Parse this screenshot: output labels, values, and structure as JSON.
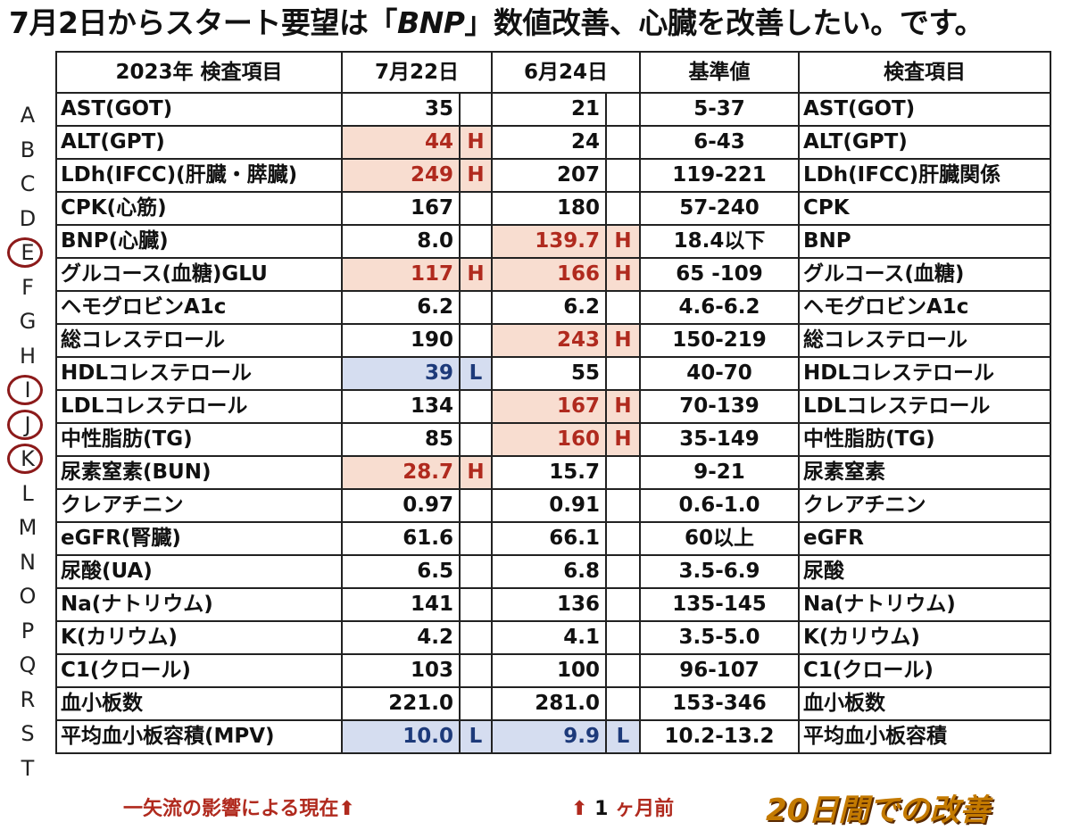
{
  "title_parts": [
    "7月2日からスタート要望は「",
    "BNP",
    "」数値改善、心臓を改善したい。です。"
  ],
  "headers": [
    "2023年 検査項目",
    "7月22日",
    "6月24日",
    "基準値",
    "検査項目"
  ],
  "rows": [
    {
      "letter": "A",
      "circled": false,
      "item": "AST(GOT)",
      "v1": "35",
      "f1": "",
      "s1": "",
      "v2": "21",
      "f2": "",
      "s2": "",
      "ref": "5-37",
      "item2": "AST(GOT)"
    },
    {
      "letter": "B",
      "circled": false,
      "item": "ALT(GPT)",
      "v1": "44",
      "f1": "H",
      "s1": "hi",
      "v2": "24",
      "f2": "",
      "s2": "",
      "ref": "6-43",
      "item2": "ALT(GPT)"
    },
    {
      "letter": "C",
      "circled": false,
      "item": "LDh(IFCC)(肝臓・膵臓)",
      "v1": "249",
      "f1": "H",
      "s1": "hi",
      "v2": "207",
      "f2": "",
      "s2": "",
      "ref": "119-221",
      "item2": "LDh(IFCC)肝臓関係"
    },
    {
      "letter": "D",
      "circled": false,
      "item": "CPK(心筋)",
      "v1": "167",
      "f1": "",
      "s1": "",
      "v2": "180",
      "f2": "",
      "s2": "",
      "ref": "57-240",
      "item2": "CPK"
    },
    {
      "letter": "E",
      "circled": true,
      "item": "BNP(心臓)",
      "v1": "8.0",
      "f1": "",
      "s1": "",
      "v2": "139.7",
      "f2": "H",
      "s2": "hi",
      "ref": "18.4以下",
      "item2": "BNP"
    },
    {
      "letter": "F",
      "circled": false,
      "item": "グルコース(血糖)GLU",
      "v1": "117",
      "f1": "H",
      "s1": "hi",
      "v2": "166",
      "f2": "H",
      "s2": "hi",
      "ref": "65 -109",
      "item2": "グルコース(血糖)"
    },
    {
      "letter": "G",
      "circled": false,
      "item": "ヘモグロビンA1c",
      "v1": "6.2",
      "f1": "",
      "s1": "",
      "v2": "6.2",
      "f2": "",
      "s2": "",
      "ref": "4.6-6.2",
      "item2": "ヘモグロビンA1c"
    },
    {
      "letter": "H",
      "circled": false,
      "item": "総コレステロール",
      "v1": "190",
      "f1": "",
      "s1": "",
      "v2": "243",
      "f2": "H",
      "s2": "hi",
      "ref": "150-219",
      "item2": "総コレステロール"
    },
    {
      "letter": "I",
      "circled": true,
      "item": "HDLコレステロール",
      "v1": "39",
      "f1": "L",
      "s1": "lo",
      "v2": "55",
      "f2": "",
      "s2": "",
      "ref": "40-70",
      "item2": "HDLコレステロール"
    },
    {
      "letter": "J",
      "circled": true,
      "item": "LDLコレステロール",
      "v1": "134",
      "f1": "",
      "s1": "",
      "v2": "167",
      "f2": "H",
      "s2": "hi",
      "ref": "70-139",
      "item2": "LDLコレステロール"
    },
    {
      "letter": "K",
      "circled": true,
      "item": "中性脂肪(TG)",
      "v1": "85",
      "f1": "",
      "s1": "",
      "v2": "160",
      "f2": "H",
      "s2": "hi",
      "ref": "35-149",
      "item2": "中性脂肪(TG)"
    },
    {
      "letter": "L",
      "circled": false,
      "item": "尿素窒素(BUN)",
      "v1": "28.7",
      "f1": "H",
      "s1": "hi",
      "v2": "15.7",
      "f2": "",
      "s2": "",
      "ref": "9-21",
      "item2": "尿素窒素"
    },
    {
      "letter": "M",
      "circled": false,
      "item": "クレアチニン",
      "v1": "0.97",
      "f1": "",
      "s1": "",
      "v2": "0.91",
      "f2": "",
      "s2": "",
      "ref": "0.6-1.0",
      "item2": "クレアチニン"
    },
    {
      "letter": "N",
      "circled": false,
      "item": "eGFR(腎臓)",
      "v1": "61.6",
      "f1": "",
      "s1": "",
      "v2": "66.1",
      "f2": "",
      "s2": "",
      "ref": "60以上",
      "item2": "eGFR"
    },
    {
      "letter": "O",
      "circled": false,
      "item": "尿酸(UA)",
      "v1": "6.5",
      "f1": "",
      "s1": "",
      "v2": "6.8",
      "f2": "",
      "s2": "",
      "ref": "3.5-6.9",
      "item2": "尿酸"
    },
    {
      "letter": "P",
      "circled": false,
      "item": "Na(ナトリウム)",
      "v1": "141",
      "f1": "",
      "s1": "",
      "v2": "136",
      "f2": "",
      "s2": "",
      "ref": "135-145",
      "item2": "Na(ナトリウム)"
    },
    {
      "letter": "Q",
      "circled": false,
      "item": "K(カリウム)",
      "v1": "4.2",
      "f1": "",
      "s1": "",
      "v2": "4.1",
      "f2": "",
      "s2": "",
      "ref": "3.5-5.0",
      "item2": "K(カリウム)"
    },
    {
      "letter": "R",
      "circled": false,
      "item": "C1(クロール)",
      "v1": "103",
      "f1": "",
      "s1": "",
      "v2": "100",
      "f2": "",
      "s2": "",
      "ref": "96-107",
      "item2": "C1(クロール)"
    },
    {
      "letter": "S",
      "circled": false,
      "item": "血小板数",
      "v1": "221.0",
      "f1": "",
      "s1": "",
      "v2": "281.0",
      "f2": "",
      "s2": "",
      "ref": "153-346",
      "item2": "血小板数"
    },
    {
      "letter": "T",
      "circled": false,
      "item": "平均血小板容積(MPV)",
      "v1": "10.0",
      "f1": "L",
      "s1": "lo",
      "v2": "9.9",
      "f2": "L",
      "s2": "lo",
      "ref": "10.2-13.2",
      "item2": "平均血小板容積"
    }
  ],
  "footer": {
    "left": "一矢流の影響による現在⬆",
    "mid_arrow": "⬆",
    "mid_num": "1",
    "mid_text": "ヶ月前",
    "right": "20日間での改善"
  },
  "colors": {
    "high_bg": "#f8ddd0",
    "high_text": "#b02a1e",
    "low_bg": "#d5ddf0",
    "low_text": "#1d3a7a",
    "circle": "#8c1a1a",
    "footer_gold": "#c47a00"
  }
}
